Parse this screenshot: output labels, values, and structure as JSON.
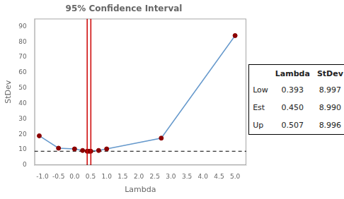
{
  "chart_data": {
    "type": "line",
    "title": "95% Confidence Interval",
    "xlabel": "Lambda",
    "ylabel": "StDev",
    "x": [
      -1.1,
      -0.5,
      0.0,
      0.25,
      0.393,
      0.45,
      0.507,
      0.75,
      1.0,
      2.7,
      5.0
    ],
    "series": [
      {
        "type": "line",
        "color": "#6699CC",
        "values": [
          19.0,
          11.0,
          10.5,
          9.5,
          8.997,
          8.99,
          8.996,
          9.5,
          10.5,
          17.5,
          84.0
        ]
      },
      {
        "type": "scatter",
        "color": "#8B0000",
        "values": [
          19.0,
          11.0,
          10.5,
          9.5,
          8.997,
          8.99,
          8.996,
          9.5,
          10.5,
          17.5,
          84.0
        ]
      }
    ],
    "xlim": [
      -1.25,
      5.35
    ],
    "ylim": [
      0,
      95
    ],
    "xticks": [
      {
        "value": -1.0,
        "label": "-1.0"
      },
      -0.5,
      {
        "value": 0.0,
        "label": "0.0"
      },
      0.5,
      {
        "value": 1.0,
        "label": "1.0"
      },
      1.5,
      {
        "value": 2.0,
        "label": "2.0"
      },
      2.5,
      {
        "value": 3.0,
        "label": "3.0"
      },
      3.5,
      {
        "value": 4.0,
        "label": "4.0"
      },
      4.5,
      {
        "value": 5.0,
        "label": "5.0"
      }
    ],
    "yticks": [
      0,
      10,
      20,
      30,
      40,
      50,
      60,
      70,
      80,
      90
    ],
    "hlines": [
      {
        "value": 8.99,
        "color": "#333333",
        "line_style": "dashed"
      }
    ],
    "vlines": [
      {
        "value": 0.393,
        "color": "#CC0000"
      },
      {
        "value": 0.507,
        "color": "#CC0000"
      }
    ],
    "table": {
      "columns": [
        "Lambda",
        "StDev"
      ],
      "rows": [
        {
          "label": "Low",
          "values": [
            0.393,
            8.997
          ]
        },
        {
          "label": "Est",
          "values": [
            {
              "value": 0.45,
              "label": "0.450"
            },
            {
              "value": 8.99,
              "label": "8.990"
            }
          ]
        },
        {
          "label": "Up",
          "values": [
            0.507,
            8.996
          ]
        }
      ]
    },
    "grid": false
  }
}
